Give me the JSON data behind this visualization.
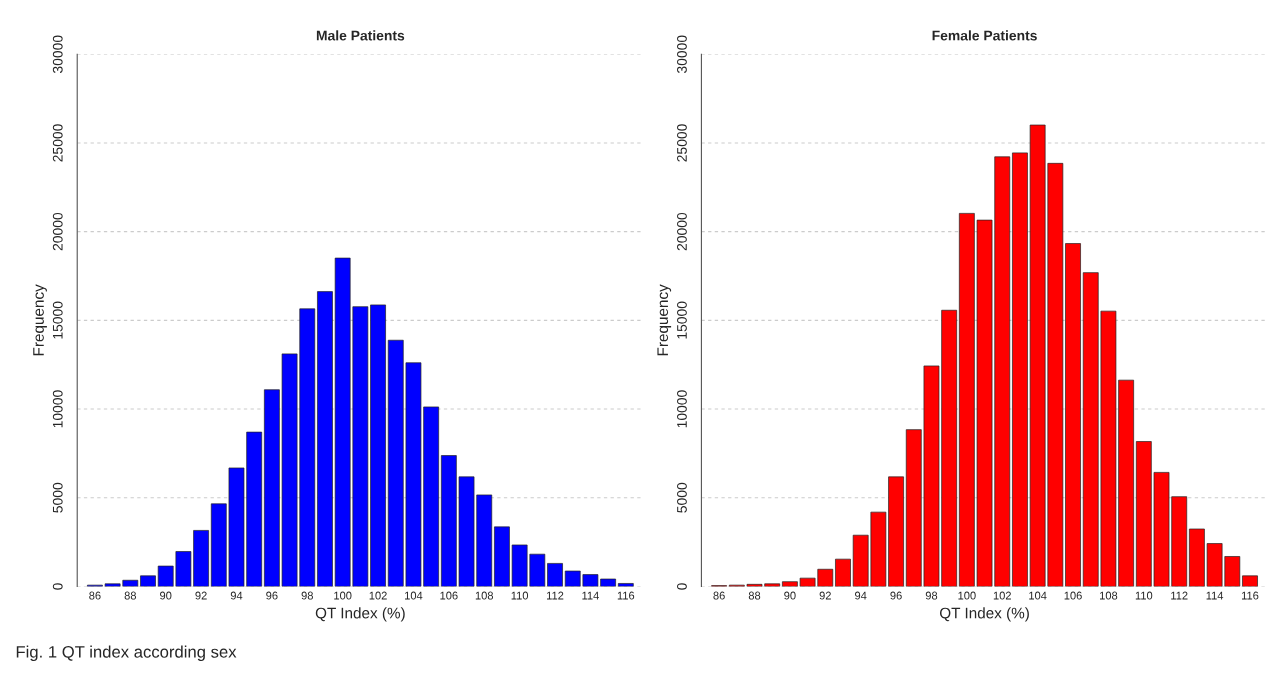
{
  "chart_data": [
    {
      "type": "bar",
      "title": "Male Patients",
      "xlabel": "QT Index (%)",
      "ylabel": "Frequency",
      "categories": [
        "86",
        null,
        "88",
        null,
        "90",
        null,
        "92",
        null,
        "94",
        null,
        "96",
        null,
        "98",
        null,
        "100",
        null,
        "102",
        null,
        "104",
        null,
        "106",
        null,
        "108",
        null,
        "110",
        null,
        "112",
        null,
        "114",
        null,
        "116"
      ],
      "series": [
        {
          "color": "#0000ff",
          "values": [
            75,
            150,
            350,
            600,
            1150,
            1970,
            3160,
            4660,
            6680,
            8700,
            11090,
            13110,
            15650,
            16620,
            18510,
            15770,
            15870,
            13880,
            12610,
            10120,
            7380,
            6180,
            5160,
            3360,
            2340,
            1820,
            1300,
            870,
            670,
            420,
            170
          ]
        }
      ],
      "ylim": [
        0,
        30000
      ],
      "yticks": [
        0,
        5000,
        10000,
        15000,
        20000,
        25000,
        30000
      ],
      "grid": "y",
      "annotations": [
        "Fig. 1 QT index according sex"
      ]
    },
    {
      "type": "bar",
      "title": "Female Patients",
      "xlabel": "QT Index (%)",
      "ylabel": "Frequency",
      "categories": [
        "86",
        null,
        "88",
        null,
        "90",
        null,
        "92",
        null,
        "94",
        null,
        "96",
        null,
        "98",
        null,
        "100",
        null,
        "102",
        null,
        "104",
        null,
        "106",
        null,
        "108",
        null,
        "110",
        null,
        "112",
        null,
        "114",
        null,
        "116"
      ],
      "series": [
        {
          "color": "#ff0000",
          "values": [
            50,
            75,
            120,
            150,
            270,
            470,
            970,
            1540,
            2890,
            4190,
            6180,
            8840,
            12430,
            15570,
            21030,
            20650,
            24220,
            24440,
            26010,
            23850,
            19330,
            17690,
            15520,
            11630,
            8170,
            6430,
            5060,
            3240,
            2420,
            1690,
            600
          ]
        }
      ],
      "ylim": [
        0,
        30000
      ],
      "yticks": [
        0,
        5000,
        10000,
        15000,
        20000,
        25000,
        30000
      ],
      "grid": "y"
    }
  ]
}
